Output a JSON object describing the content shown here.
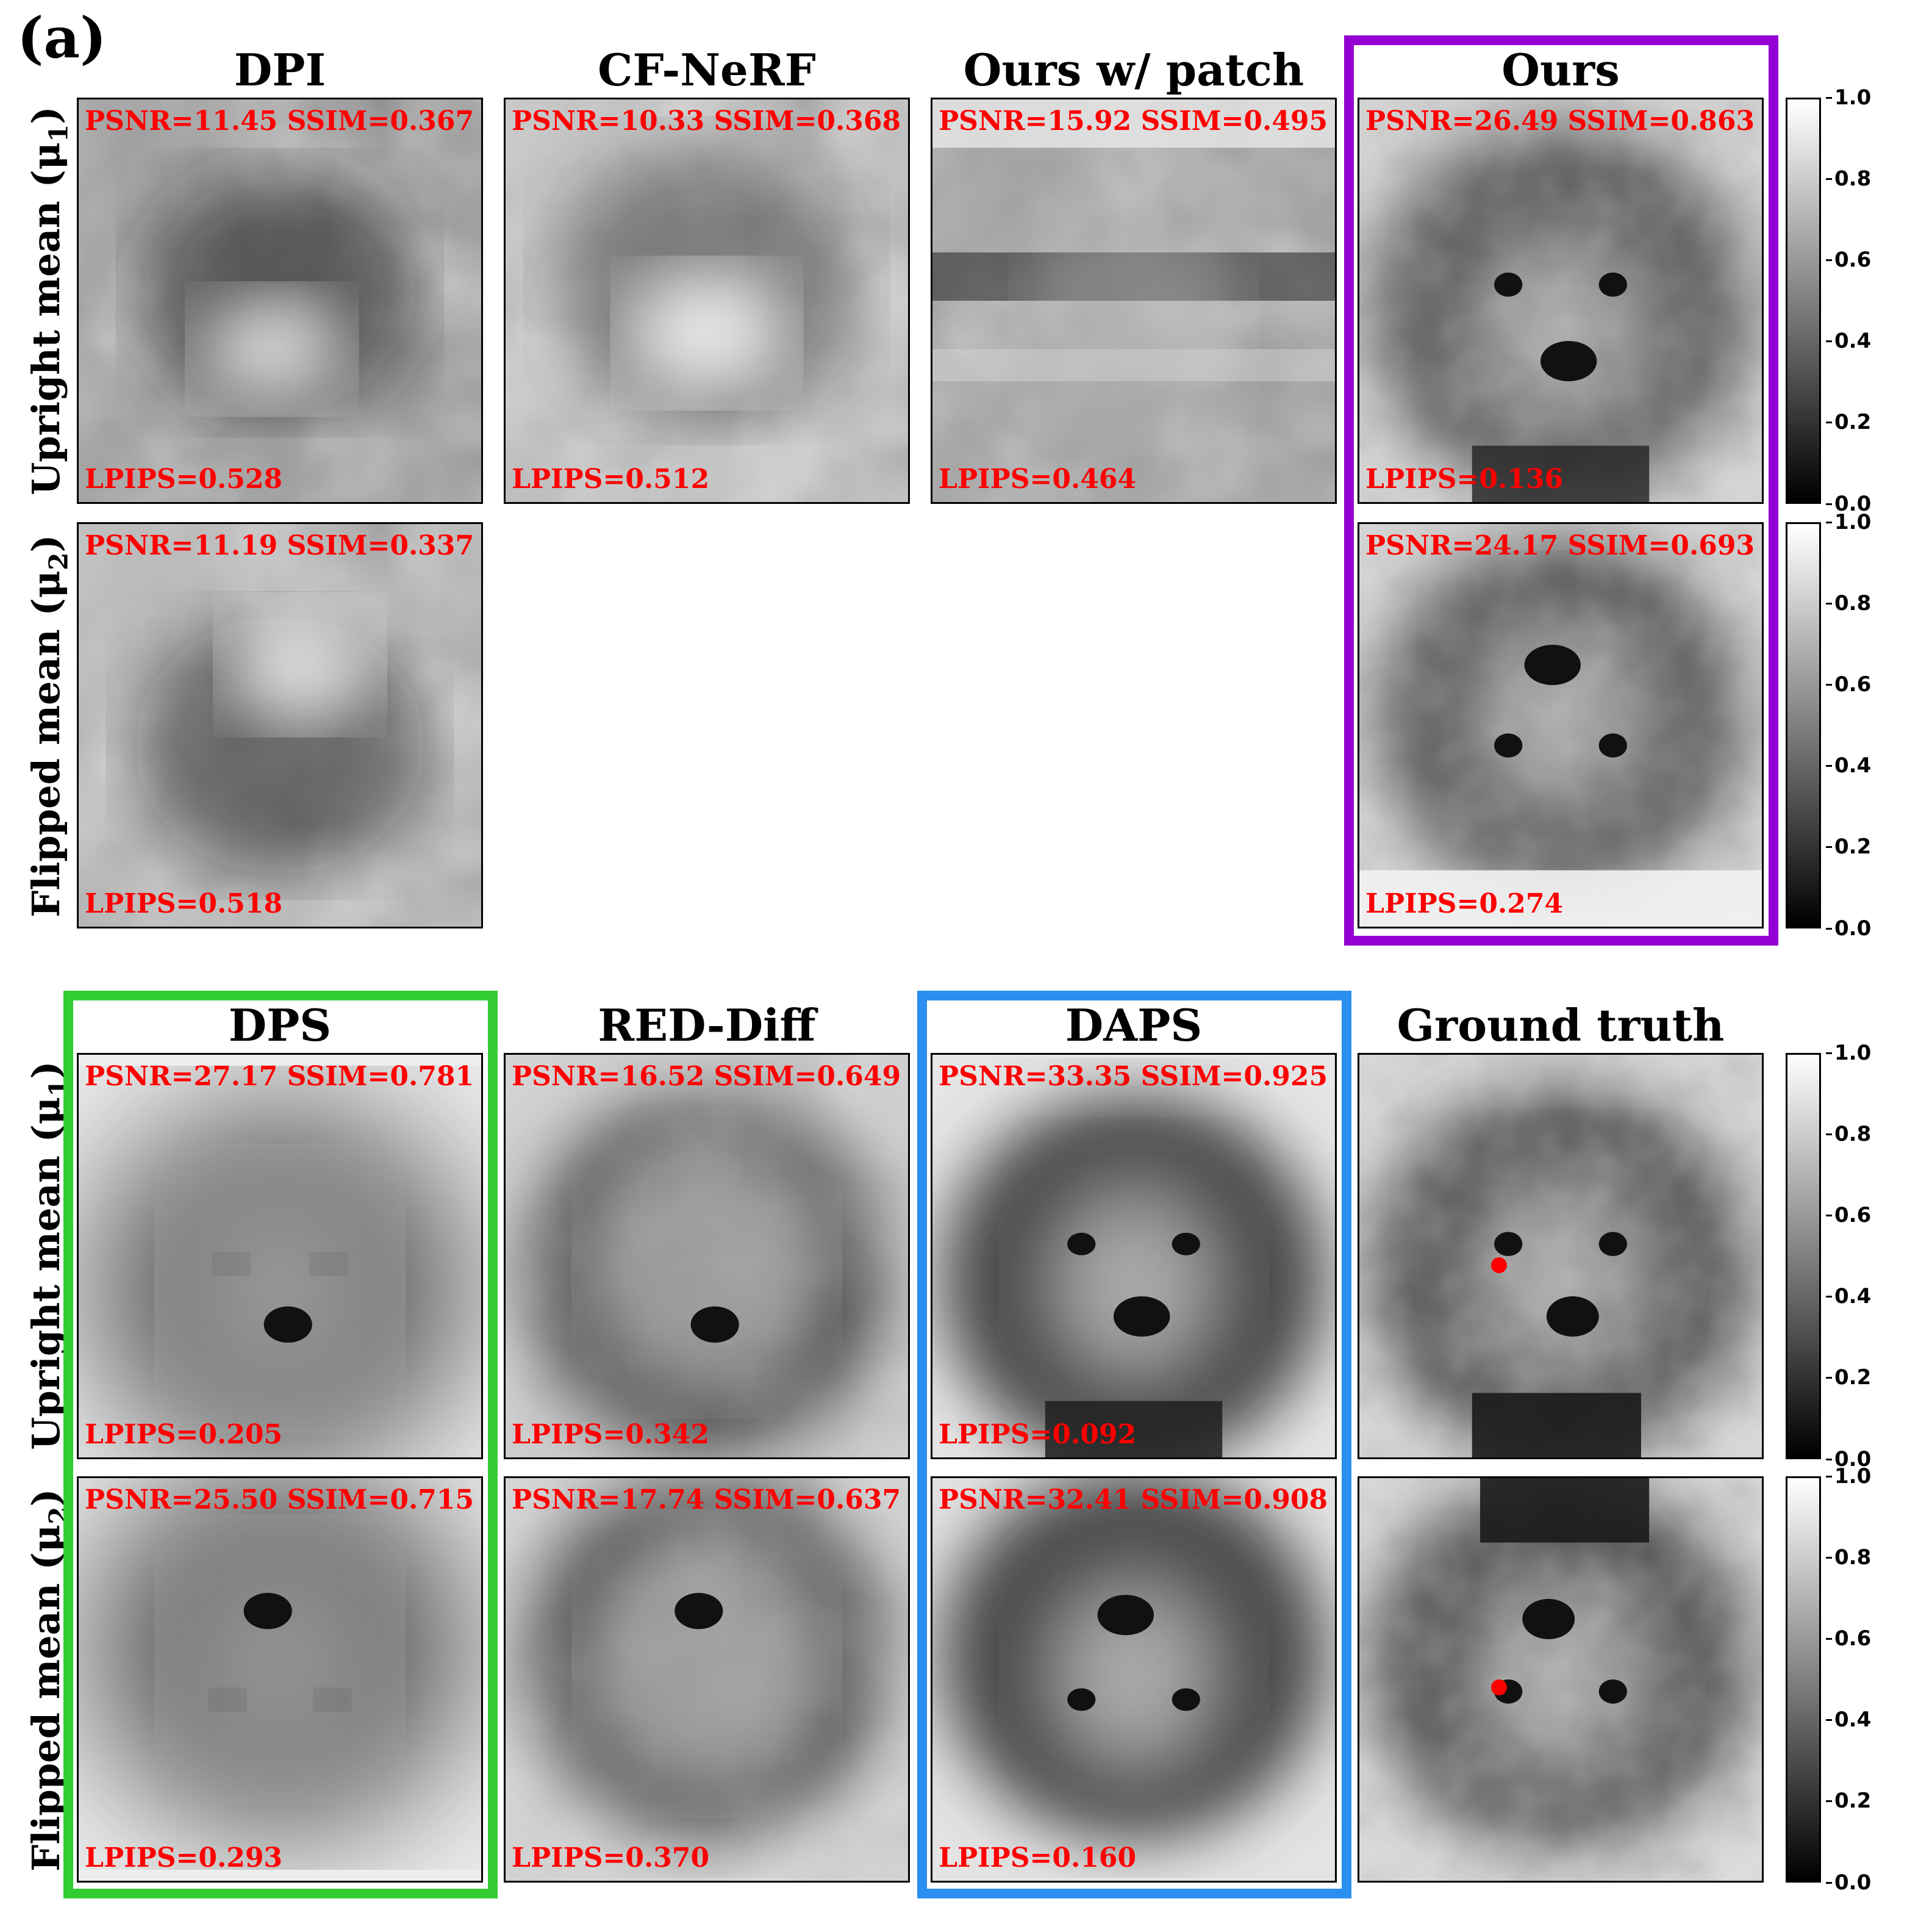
{
  "panel_label": "(a)",
  "columns_top": [
    "DPI",
    "CF-NeRF",
    "Ours w/ patch",
    "Ours"
  ],
  "columns_bottom": [
    "DPS",
    "RED-Diff",
    "DAPS",
    "Ground truth"
  ],
  "row_labels": {
    "upright": "Upright mean (μ",
    "upright_sub": "1",
    "flipped": "Flipped mean (μ",
    "flipped_sub": "2",
    "close": ")"
  },
  "tiles": {
    "dpi_up": {
      "top": "PSNR=11.45 SSIM=0.367",
      "bottom": "LPIPS=0.528"
    },
    "cfnerf_up": {
      "top": "PSNR=10.33 SSIM=0.368",
      "bottom": "LPIPS=0.512"
    },
    "patch_up": {
      "top": "PSNR=15.92 SSIM=0.495",
      "bottom": "LPIPS=0.464"
    },
    "ours_up": {
      "top": "PSNR=26.49 SSIM=0.863",
      "bottom": "LPIPS=0.136"
    },
    "dpi_flip": {
      "top": "PSNR=11.19 SSIM=0.337",
      "bottom": "LPIPS=0.518"
    },
    "ours_flip": {
      "top": "PSNR=24.17 SSIM=0.693",
      "bottom": "LPIPS=0.274"
    },
    "dps_up": {
      "top": "PSNR=27.17 SSIM=0.781",
      "bottom": "LPIPS=0.205"
    },
    "reddiff_up": {
      "top": "PSNR=16.52 SSIM=0.649",
      "bottom": "LPIPS=0.342"
    },
    "daps_up": {
      "top": "PSNR=33.35 SSIM=0.925",
      "bottom": "LPIPS=0.092"
    },
    "dps_flip": {
      "top": "PSNR=25.50 SSIM=0.715",
      "bottom": "LPIPS=0.293"
    },
    "reddiff_flip": {
      "top": "PSNR=17.74 SSIM=0.637",
      "bottom": "LPIPS=0.370"
    },
    "daps_flip": {
      "top": "PSNR=32.41 SSIM=0.908",
      "bottom": "LPIPS=0.160"
    }
  },
  "colorbar_ticks": [
    "1.0",
    "0.8",
    "0.6",
    "0.4",
    "0.2",
    "0.0"
  ],
  "colors": {
    "metric_text": "#ff0000",
    "ours_frame": "#9400d3",
    "dps_frame": "#33cc33",
    "daps_frame": "#2a8ff0"
  }
}
